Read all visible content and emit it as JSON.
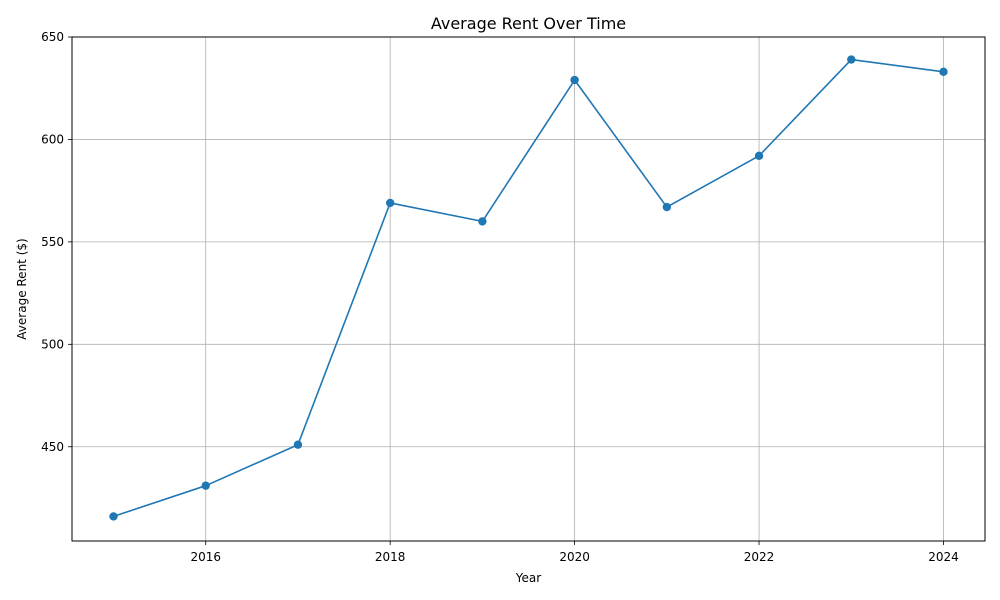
{
  "chart_data": {
    "type": "line",
    "title": "Average Rent Over Time",
    "xlabel": "Year",
    "ylabel": "Average Rent ($)",
    "x": [
      2015,
      2016,
      2017,
      2018,
      2019,
      2020,
      2021,
      2022,
      2023,
      2024
    ],
    "series": [
      {
        "values": [
          416,
          431,
          451,
          569,
          560,
          629,
          567,
          592,
          639,
          633
        ],
        "color": "#1f77b4",
        "marker": "circle"
      }
    ],
    "xlim": [
      2014.55,
      2024.45
    ],
    "ylim": [
      404,
      650
    ],
    "xticks": [
      2016,
      2018,
      2020,
      2022,
      2024
    ],
    "yticks": [
      450,
      500,
      550,
      600,
      650
    ],
    "grid": true
  }
}
